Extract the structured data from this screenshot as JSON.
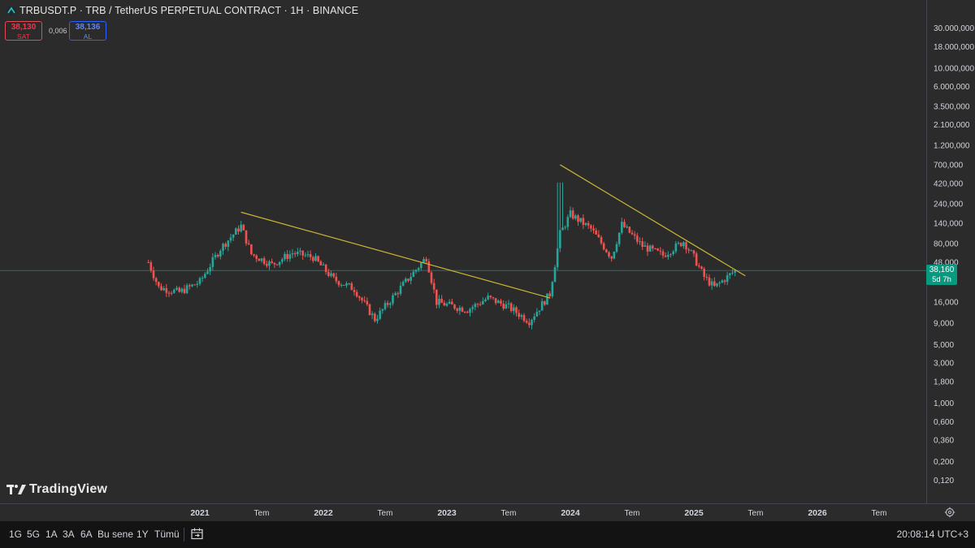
{
  "header": {
    "title": "TRBUSDT.P · TRB / TetherUS PERPETUAL CONTRACT · 1H · BINANCE",
    "sell_price": "38,130",
    "sell_label": "SAT",
    "spread": "0,006",
    "buy_price": "38,136",
    "buy_label": "AL"
  },
  "watermark": "TradingView",
  "price_tag": {
    "price": "38,160",
    "countdown": "5d 7h"
  },
  "bottom_bar": {
    "timeframes": [
      "1G",
      "5G",
      "1A",
      "3A",
      "6A",
      "Bu sene",
      "1Y",
      "Tümü"
    ],
    "clock": "20:08:14 UTC+3"
  },
  "colors": {
    "background": "#2b2b2b",
    "up": "#26a69a",
    "down": "#ef5350",
    "trendline": "#c9b536",
    "price_line": "#26a69a"
  },
  "chart_data": {
    "type": "candlestick",
    "scale": "log",
    "last_price": 38.16,
    "y_ticks": [
      "30.000,000",
      "18.000,000",
      "10.000,000",
      "6.000,000",
      "3.500,000",
      "2.100,000",
      "1.200,000",
      "700,000",
      "420,000",
      "240,000",
      "140,000",
      "80,000",
      "48,000",
      "16,000",
      "9,000",
      "5,000",
      "3,000",
      "1,800",
      "1,000",
      "0,600",
      "0,360",
      "0,200",
      "0,120"
    ],
    "y_tick_values": [
      30000,
      18000,
      10000,
      6000,
      3500,
      2100,
      1200,
      700,
      420,
      240,
      140,
      80,
      48,
      16,
      9,
      5,
      3,
      1.8,
      1,
      0.6,
      0.36,
      0.2,
      0.12
    ],
    "x_ticks": [
      "2021",
      "Tem",
      "2022",
      "Tem",
      "2023",
      "Tem",
      "2024",
      "Tem",
      "2025",
      "Tem",
      "2026",
      "Tem"
    ],
    "x_tick_dates": [
      "2021-01",
      "2021-07",
      "2022-01",
      "2022-07",
      "2023-01",
      "2023-07",
      "2024-01",
      "2024-07",
      "2025-01",
      "2025-07",
      "2026-01",
      "2026-07"
    ],
    "anchors": [
      {
        "date": "2020-08",
        "price": 48
      },
      {
        "date": "2020-09",
        "price": 24
      },
      {
        "date": "2020-11",
        "price": 21
      },
      {
        "date": "2021-01",
        "price": 28
      },
      {
        "date": "2021-03",
        "price": 70
      },
      {
        "date": "2021-05",
        "price": 130
      },
      {
        "date": "2021-06",
        "price": 60
      },
      {
        "date": "2021-08",
        "price": 45
      },
      {
        "date": "2021-10",
        "price": 62
      },
      {
        "date": "2021-12",
        "price": 55
      },
      {
        "date": "2022-02",
        "price": 30
      },
      {
        "date": "2022-04",
        "price": 23
      },
      {
        "date": "2022-06",
        "price": 10
      },
      {
        "date": "2022-08",
        "price": 20
      },
      {
        "date": "2022-11",
        "price": 55
      },
      {
        "date": "2022-12",
        "price": 16
      },
      {
        "date": "2023-03",
        "price": 13
      },
      {
        "date": "2023-05",
        "price": 18
      },
      {
        "date": "2023-07",
        "price": 14
      },
      {
        "date": "2023-09",
        "price": 9.5
      },
      {
        "date": "2023-11",
        "price": 20
      },
      {
        "date": "2023-12",
        "price": 105
      },
      {
        "date": "2024-01",
        "price": 180
      },
      {
        "date": "2024-03",
        "price": 120
      },
      {
        "date": "2024-05",
        "price": 55
      },
      {
        "date": "2024-06",
        "price": 135
      },
      {
        "date": "2024-08",
        "price": 75
      },
      {
        "date": "2024-10",
        "price": 58
      },
      {
        "date": "2024-12",
        "price": 85
      },
      {
        "date": "2025-01",
        "price": 55
      },
      {
        "date": "2025-02",
        "price": 32
      },
      {
        "date": "2025-03",
        "price": 24
      },
      {
        "date": "2025-05",
        "price": 38.16
      }
    ],
    "trendlines": [
      {
        "from": {
          "date": "2021-05",
          "price": 190
        },
        "to": {
          "date": "2023-11",
          "price": 18
        }
      },
      {
        "from": {
          "date": "2023-12",
          "price": 700
        },
        "to": {
          "date": "2025-06",
          "price": 33
        }
      }
    ]
  }
}
